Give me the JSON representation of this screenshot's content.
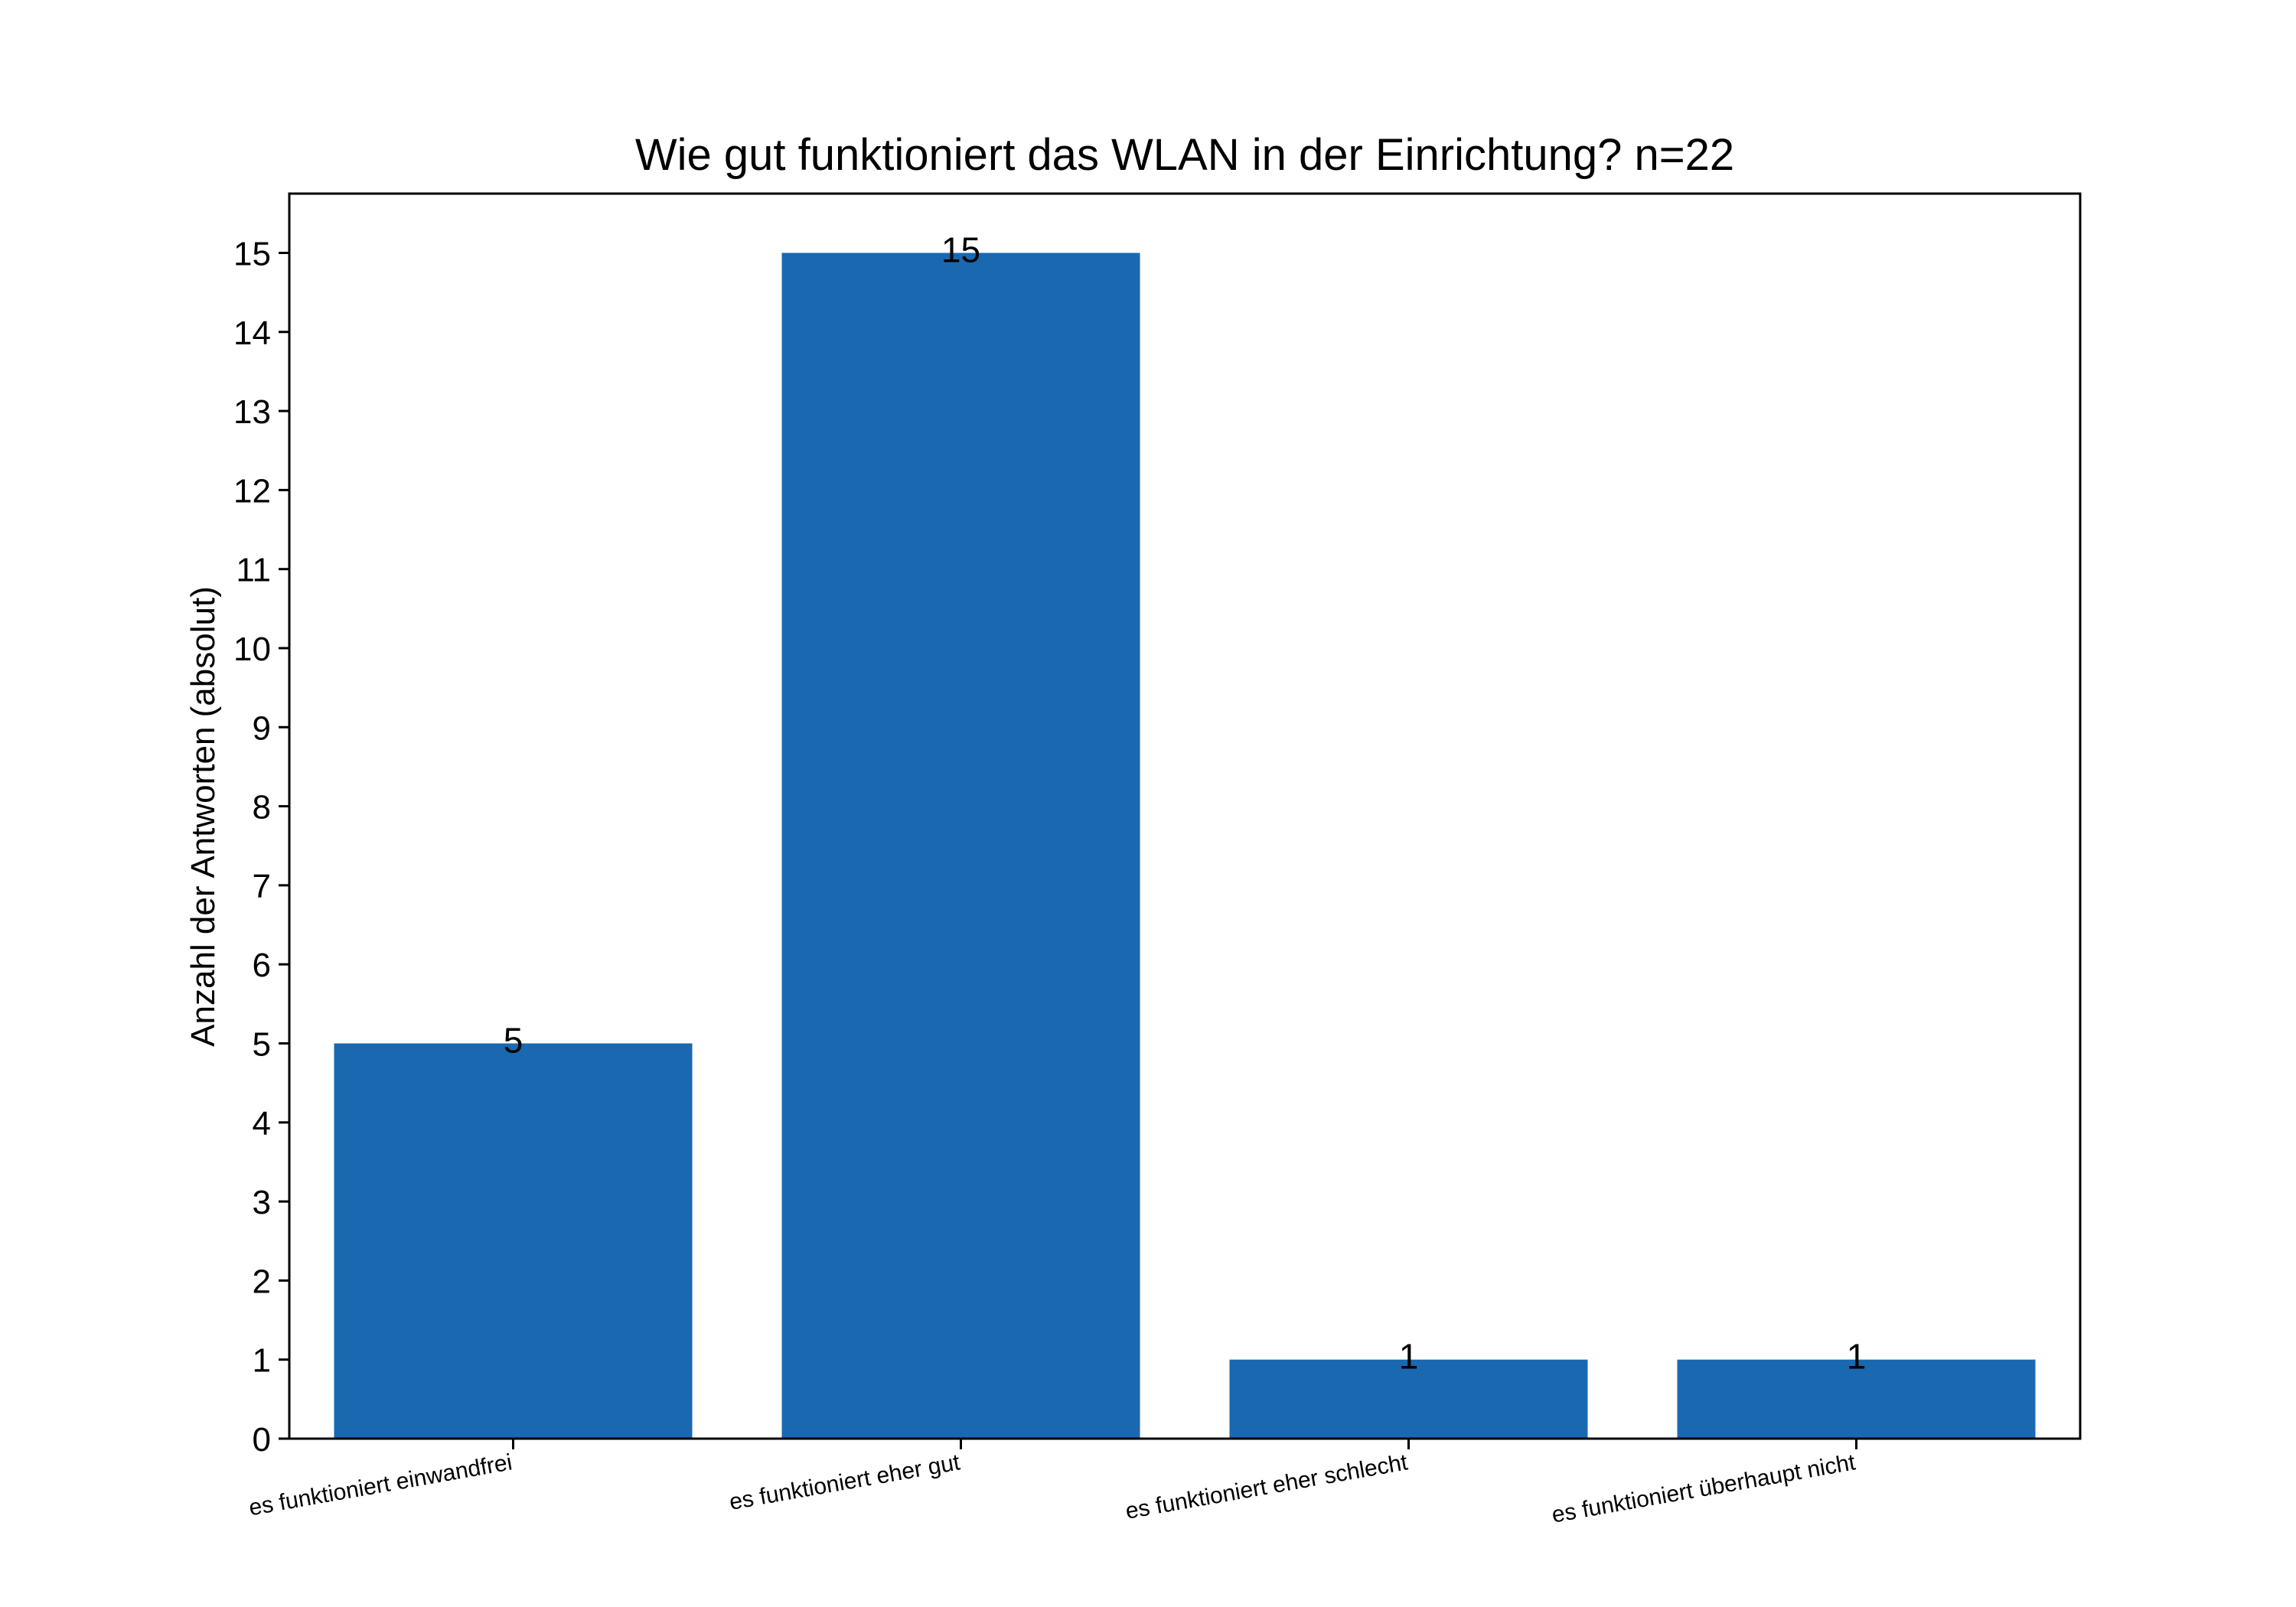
{
  "chart_data": {
    "type": "bar",
    "title": "Wie gut funktioniert das WLAN in der Einrichtung? n=22",
    "xlabel": "",
    "ylabel": "Anzahl der Antworten (absolut)",
    "categories": [
      "es funktioniert einwandfrei",
      "es funktioniert eher gut",
      "es funktioniert eher schlecht",
      "es funktioniert überhaupt nicht"
    ],
    "values": [
      5,
      15,
      1,
      1
    ],
    "ylim": [
      0,
      15.75
    ],
    "yticks": [
      0,
      1,
      2,
      3,
      4,
      5,
      6,
      7,
      8,
      9,
      10,
      11,
      12,
      13,
      14,
      15
    ],
    "bar_color": "#1a68b0",
    "grid": false,
    "legend": "none"
  }
}
